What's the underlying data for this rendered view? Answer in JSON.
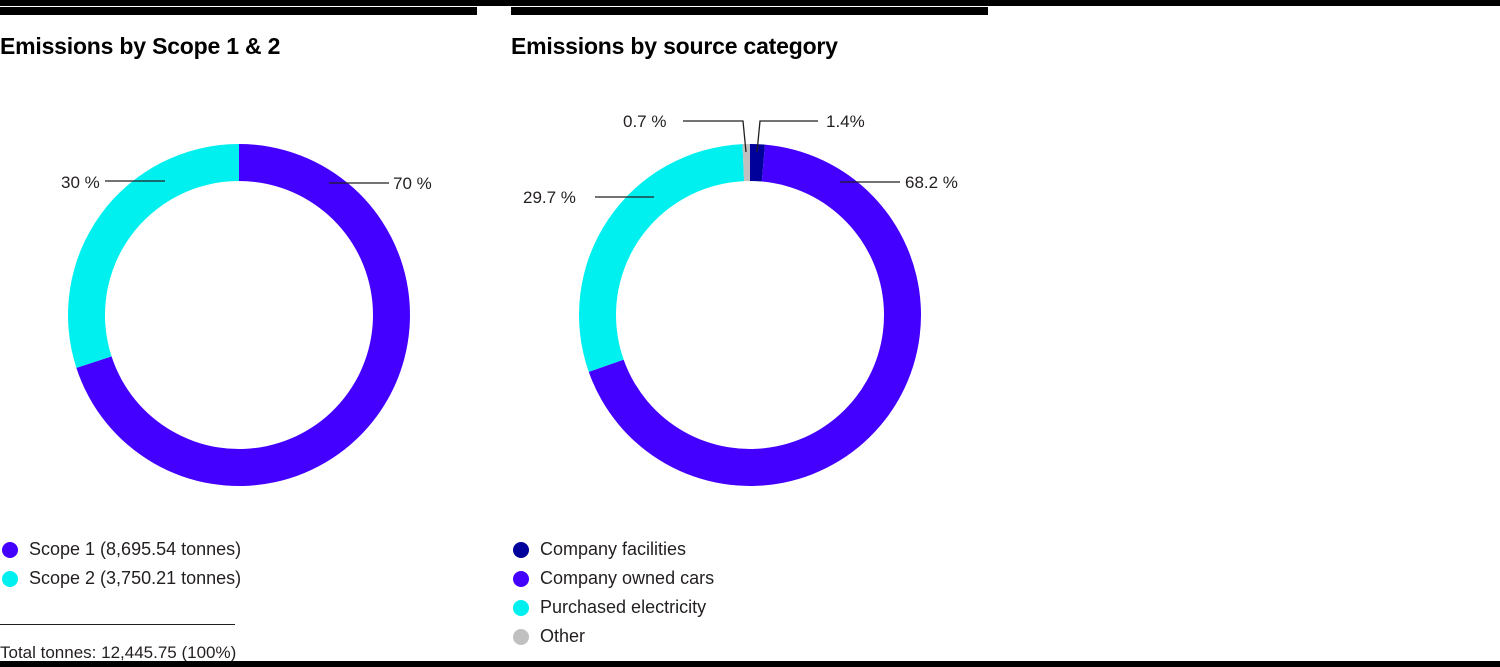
{
  "colors": {
    "scope1": "#4400FF",
    "scope2": "#00F0F0",
    "company_facilities": "#00009A",
    "company_owned_cars": "#4400FF",
    "purchased_electricity": "#00F0F0",
    "other": "#C0C0C0"
  },
  "left_panel": {
    "title": "Emissions by Scope 1 & 2",
    "labels": {
      "scope1_pct": "70 %",
      "scope2_pct": "30 %"
    },
    "legend": [
      {
        "label": "Scope 1 (8,695.54 tonnes)",
        "color": "#4400FF"
      },
      {
        "label": "Scope 2 (3,750.21 tonnes)",
        "color": "#00F0F0"
      }
    ],
    "total": "Total tonnes: 12,445.75 (100%)"
  },
  "right_panel": {
    "title": "Emissions by source category",
    "labels": {
      "facilities_pct": "1.4%",
      "cars_pct": "68.2 %",
      "electricity_pct": "29.7 %",
      "other_pct": "0.7 %"
    },
    "legend": [
      {
        "label": "Company facilities",
        "color": "#00009A"
      },
      {
        "label": "Company owned cars",
        "color": "#4400FF"
      },
      {
        "label": "Purchased electricity",
        "color": "#00F0F0"
      },
      {
        "label": "Other",
        "color": "#C0C0C0"
      }
    ]
  },
  "chart_data": [
    {
      "type": "pie",
      "subtype": "donut",
      "title": "Emissions by Scope 1 & 2",
      "categories": [
        "Scope 1",
        "Scope 2"
      ],
      "values": [
        70,
        30
      ],
      "absolute_values_tonnes": [
        8695.54,
        3750.21
      ],
      "value_labels": [
        "70 %",
        "30 %"
      ],
      "colors": [
        "#4400FF",
        "#00F0F0"
      ],
      "legend": [
        "Scope 1 (8,695.54 tonnes)",
        "Scope 2 (3,750.21 tonnes)"
      ],
      "legend_position": "bottom",
      "annotation": "Total tonnes: 12,445.75 (100%)",
      "start_angle": "12 o'clock",
      "direction": "clockwise"
    },
    {
      "type": "pie",
      "subtype": "donut",
      "title": "Emissions by source category",
      "categories": [
        "Company facilities",
        "Company owned cars",
        "Purchased electricity",
        "Other"
      ],
      "values": [
        1.4,
        68.2,
        29.7,
        0.7
      ],
      "value_labels": [
        "1.4%",
        "68.2 %",
        "29.7 %",
        "0.7 %"
      ],
      "colors": [
        "#00009A",
        "#4400FF",
        "#00F0F0",
        "#C0C0C0"
      ],
      "legend": [
        "Company facilities",
        "Company owned cars",
        "Purchased electricity",
        "Other"
      ],
      "legend_position": "bottom",
      "start_angle": "12 o'clock",
      "direction": "clockwise"
    }
  ]
}
